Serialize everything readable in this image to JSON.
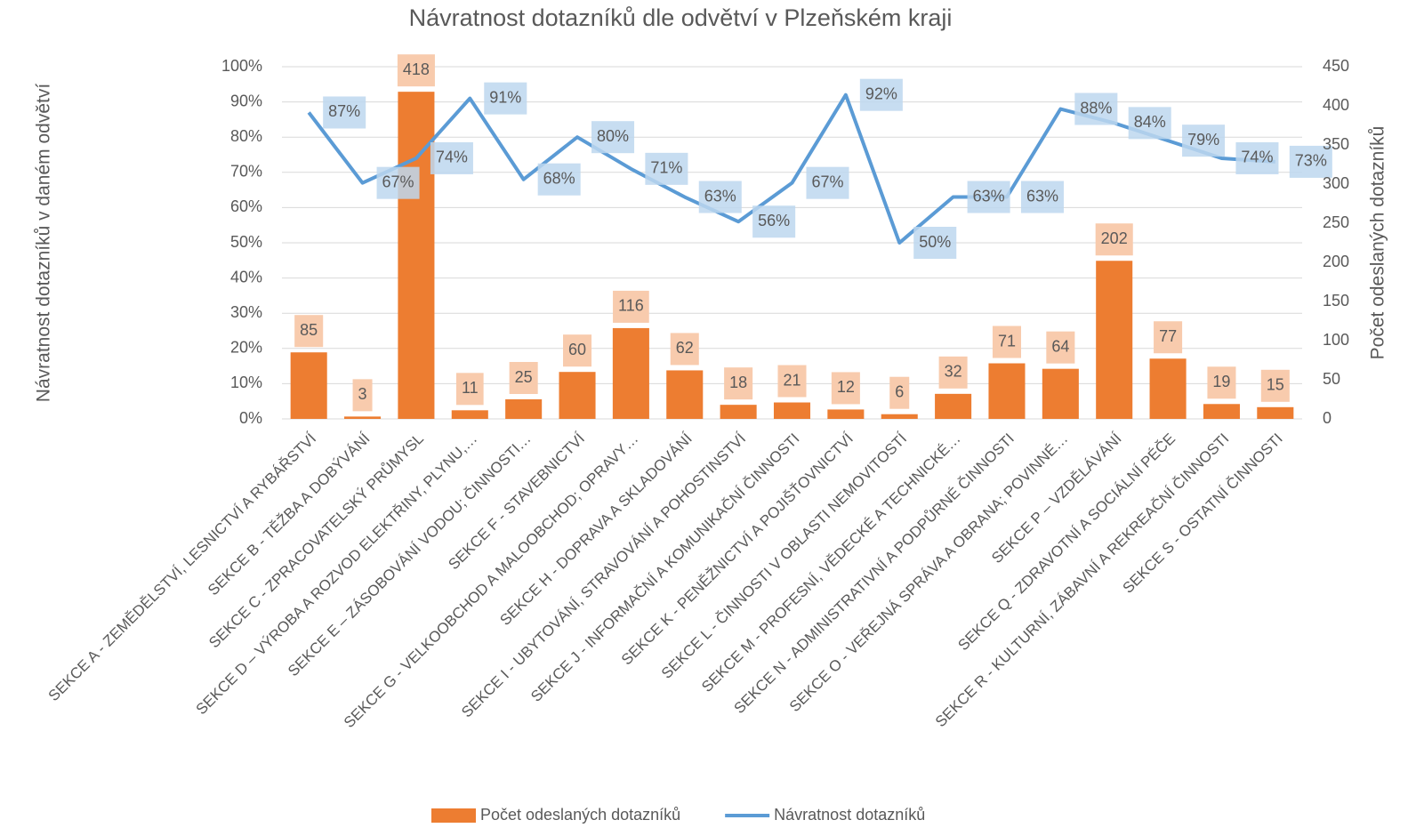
{
  "chart_data": {
    "type": "combo",
    "title": "Návratnost dotazníků dle odvětví v Plzeňském kraji",
    "ylabel": "Návratnost dotazníků v daném odvětví",
    "y2label": "Počet odeslaných dotazníků",
    "categories": [
      "SEKCE A - ZEMĚDĚLSTVÍ, LESNICTVÍ A RYBÁŘSTVÍ",
      "SEKCE B - TĚŽBA A DOBÝVÁNÍ",
      "SEKCE C - ZPRACOVATELSKÝ PRŮMYSL",
      "SEKCE D – VÝROBA A ROZVOD ELEKTŘINY, PLYNU,…",
      "SEKCE E – ZÁSOBOVÁNÍ VODOU; ČINNOSTI…",
      "SEKCE F - STAVEBNICTVÍ",
      "SEKCE G - VELKOOBCHOD A MALOOBCHOD; OPRAVY…",
      "SEKCE H - DOPRAVA A SKLADOVÁNÍ",
      "SEKCE I - UBYTOVÁNÍ, STRAVOVÁNÍ A POHOSTINSTVÍ",
      "SEKCE J - INFORMAČNÍ A KOMUNIKAČNÍ ČINNOSTI",
      "SEKCE K - PENĚŽNICTVÍ A POJIŠŤOVNICTVÍ",
      "SEKCE L - ČINNOSTI V OBLASTI NEMOVITOSTÍ",
      "SEKCE M - PROFESNÍ, VĚDECKÉ A TECHNICKÉ…",
      "SEKCE N - ADMINISTRATIVNÍ A PODPŮRNÉ ČINNOSTI",
      "SEKCE O - VEŘEJNÁ SPRÁVA A OBRANA; POVINNÉ…",
      "SEKCE P – VZDĚLÁVÁNÍ",
      "SEKCE Q - ZDRAVOTNÍ A SOCIÁLNÍ PÉČE",
      "SEKCE R - KULTURNÍ, ZÁBAVNÍ A REKREAČNÍ ČINNOSTI",
      "SEKCE S - OSTATNÍ ČINNOSTI"
    ],
    "series": [
      {
        "name": "Počet odeslaných dotazníků",
        "type": "bar",
        "axis": "y2",
        "color": "#ed7d31",
        "values": [
          85,
          3,
          418,
          11,
          25,
          60,
          116,
          62,
          18,
          21,
          12,
          6,
          32,
          71,
          64,
          202,
          77,
          19,
          15
        ]
      },
      {
        "name": "Návratnost dotazníků",
        "type": "line",
        "axis": "y",
        "color": "#5b9bd5",
        "values": [
          87,
          67,
          74,
          91,
          68,
          80,
          71,
          63,
          56,
          67,
          92,
          50,
          63,
          63,
          88,
          84,
          79,
          74,
          73
        ],
        "value_labels": [
          "87%",
          "67%",
          "74%",
          "91%",
          "68%",
          "80%",
          "71%",
          "63%",
          "56%",
          "67%",
          "92%",
          "50%",
          "63%",
          "63%",
          "88%",
          "84%",
          "79%",
          "74%",
          "73%"
        ]
      }
    ],
    "ylim": [
      0,
      100
    ],
    "yticks": [
      {
        "value": 0,
        "label": "0%"
      },
      {
        "value": 10,
        "label": "10%"
      },
      {
        "value": 20,
        "label": "20%"
      },
      {
        "value": 30,
        "label": "30%"
      },
      {
        "value": 40,
        "label": "40%"
      },
      {
        "value": 50,
        "label": "50%"
      },
      {
        "value": 60,
        "label": "60%"
      },
      {
        "value": 70,
        "label": "70%"
      },
      {
        "value": 80,
        "label": "80%"
      },
      {
        "value": 90,
        "label": "90%"
      },
      {
        "value": 100,
        "label": "100%"
      }
    ],
    "y2lim": [
      0,
      450
    ],
    "y2ticks": [
      0,
      50,
      100,
      150,
      200,
      250,
      300,
      350,
      400,
      450
    ],
    "grid": true,
    "legend": "bottom"
  }
}
